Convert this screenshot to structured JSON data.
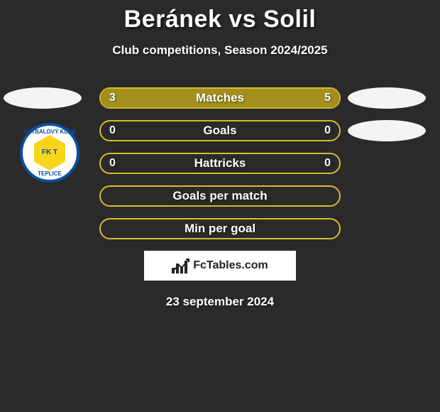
{
  "title": "Beránek vs Solil",
  "subtitle": "Club competitions, Season 2024/2025",
  "date": "23 september 2024",
  "logo_text": "FcTables.com",
  "badge": {
    "top_text": "FOTBALOVÝ KLUB",
    "bottom_text": "TEPLICE",
    "inner_text": "FK T"
  },
  "colors": {
    "border": "#d8b92b",
    "fill": "#a28f1e",
    "empty_bg": "rgba(0,0,0,0)"
  },
  "rows": [
    {
      "label": "Matches",
      "left_val": "3",
      "right_val": "5",
      "left_pct": 37.5,
      "right_pct": 62.5,
      "show_left_ellipse": true,
      "show_right_ellipse": true
    },
    {
      "label": "Goals",
      "left_val": "0",
      "right_val": "0",
      "left_pct": 0,
      "right_pct": 0,
      "show_left_ellipse": false,
      "show_right_ellipse": true
    },
    {
      "label": "Hattricks",
      "left_val": "0",
      "right_val": "0",
      "left_pct": 0,
      "right_pct": 0,
      "show_left_ellipse": false,
      "show_right_ellipse": false
    },
    {
      "label": "Goals per match",
      "left_val": "",
      "right_val": "",
      "left_pct": 0,
      "right_pct": 0,
      "show_left_ellipse": false,
      "show_right_ellipse": false
    },
    {
      "label": "Min per goal",
      "left_val": "",
      "right_val": "",
      "left_pct": 0,
      "right_pct": 0,
      "show_left_ellipse": false,
      "show_right_ellipse": false
    }
  ]
}
